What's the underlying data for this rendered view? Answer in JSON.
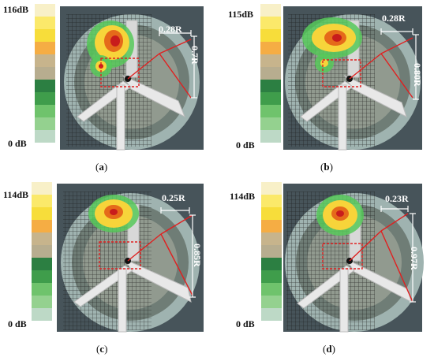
{
  "colors": {
    "scale": [
      "#f8f0c8",
      "#fbe96a",
      "#f7dd3a",
      "#f5ad44",
      "#c7b48c",
      "#b7ad8f",
      "#2c7f42",
      "#3f9d4b",
      "#6fc36c",
      "#94d18f",
      "#bdd9c6"
    ],
    "hotspot_core": "#c81c1c",
    "hotspot_mid": "#f7d43a",
    "hotspot_edge": "#57c95a",
    "marker_red": "#e02020",
    "dimension_white": "#ffffff",
    "tunnel_wall": "#9fb3b0"
  },
  "panels": [
    {
      "id": "a",
      "max_db": "116dB",
      "min_db": "0 dB",
      "horizontal": "0.28R",
      "vertical": "0.7R",
      "caption_letter": "a"
    },
    {
      "id": "b",
      "max_db": "115dB",
      "min_db": "0 dB",
      "horizontal": "0.28R",
      "vertical": "0.80R",
      "caption_letter": "b"
    },
    {
      "id": "c",
      "max_db": "114dB",
      "min_db": "0 dB",
      "horizontal": "0.25R",
      "vertical": "0.85R",
      "caption_letter": "c"
    },
    {
      "id": "d",
      "max_db": "114dB",
      "min_db": "0 dB",
      "horizontal": "0.23R",
      "vertical": "0.97R",
      "caption_letter": "d"
    }
  ],
  "caption_open": "(",
  "caption_close": ")"
}
